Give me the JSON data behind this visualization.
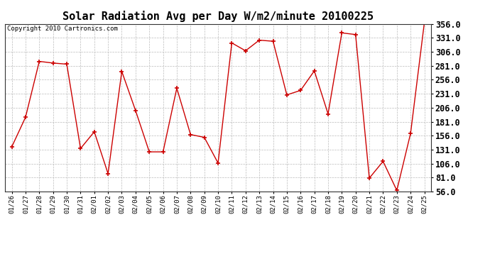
{
  "title": "Solar Radiation Avg per Day W/m2/minute 20100225",
  "copyright": "Copyright 2010 Cartronics.com",
  "dates": [
    "01/26",
    "01/27",
    "01/28",
    "01/29",
    "01/30",
    "01/31",
    "02/01",
    "02/02",
    "02/03",
    "02/04",
    "02/05",
    "02/06",
    "02/07",
    "02/08",
    "02/09",
    "02/10",
    "02/11",
    "02/12",
    "02/13",
    "02/14",
    "02/15",
    "02/16",
    "02/17",
    "02/18",
    "02/19",
    "02/20",
    "02/21",
    "02/22",
    "02/23",
    "02/24",
    "02/25"
  ],
  "values": [
    136,
    189,
    289,
    286,
    284,
    133,
    163,
    88,
    271,
    201,
    127,
    127,
    241,
    158,
    153,
    107,
    322,
    308,
    327,
    325,
    229,
    237,
    272,
    195,
    340,
    337,
    80,
    110,
    58,
    160,
    358
  ],
  "line_color": "#cc0000",
  "marker_color": "#cc0000",
  "bg_color": "#ffffff",
  "plot_bg_color": "#ffffff",
  "grid_color": "#bbbbbb",
  "ylim_min": 56.0,
  "ylim_max": 356.0,
  "yticks": [
    56.0,
    81.0,
    106.0,
    131.0,
    156.0,
    181.0,
    206.0,
    231.0,
    256.0,
    281.0,
    306.0,
    331.0,
    356.0
  ],
  "title_fontsize": 11,
  "copyright_fontsize": 6.5,
  "tick_fontsize": 6.5,
  "ytick_fontsize": 8.5
}
